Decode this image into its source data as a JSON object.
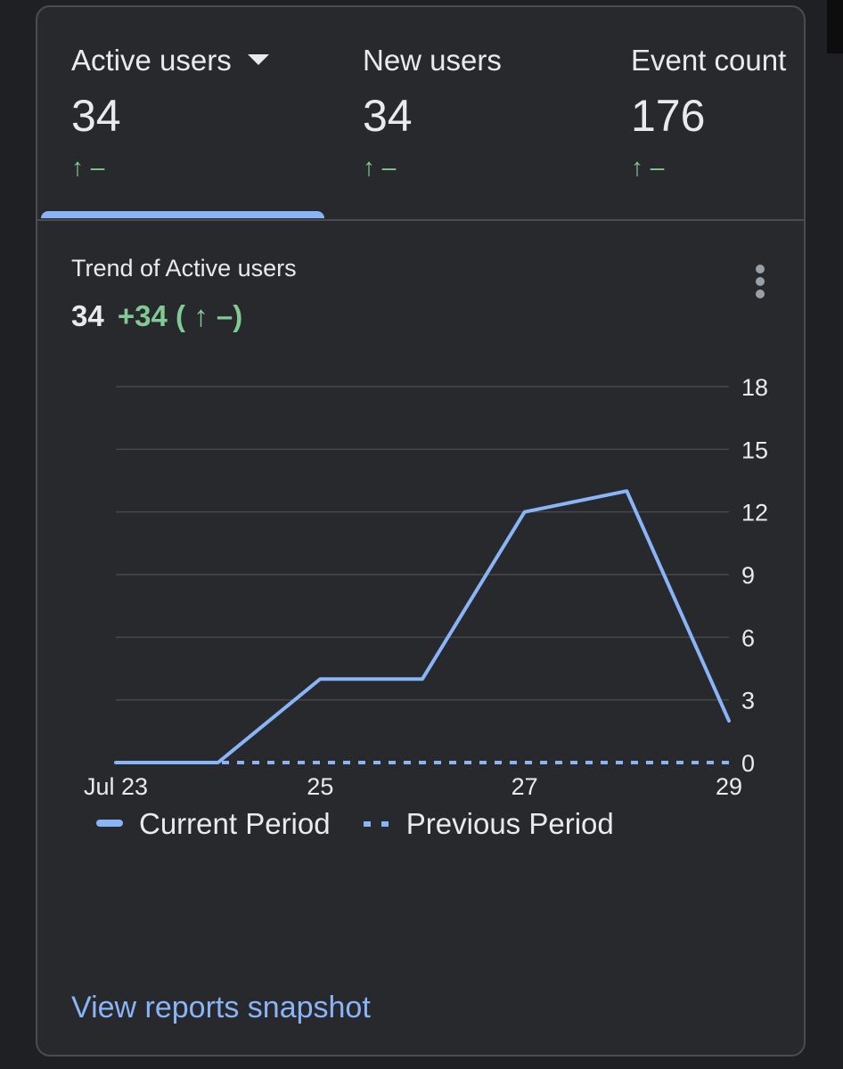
{
  "metrics": [
    {
      "label": "Active users",
      "value": "34",
      "change": "↑ –"
    },
    {
      "label": "New users",
      "value": "34",
      "change": "↑ –"
    },
    {
      "label": "Event count",
      "value": "176",
      "change": "↑ –"
    }
  ],
  "trend": {
    "title": "Trend of Active users",
    "value": "34",
    "delta": "+34 ( ↑ –)"
  },
  "chart_data": {
    "type": "line",
    "x": [
      "Jul 23",
      "Jul 24",
      "Jul 25",
      "Jul 26",
      "Jul 27",
      "Jul 28",
      "Jul 29"
    ],
    "x_tick_labels": [
      "Jul 23",
      "25",
      "27",
      "29"
    ],
    "x_tick_index": [
      0,
      2,
      4,
      6
    ],
    "series": [
      {
        "name": "Current Period",
        "values": [
          0,
          0,
          4,
          4,
          12,
          13,
          2
        ],
        "style": "solid"
      },
      {
        "name": "Previous Period",
        "values": [
          0,
          0,
          0,
          0,
          0,
          0,
          0
        ],
        "style": "dotted"
      }
    ],
    "y_ticks": [
      0,
      3,
      6,
      9,
      12,
      15,
      18
    ],
    "ylim": [
      0,
      18
    ],
    "y_axis_position": "right",
    "grid": true,
    "legend": "bottom-left",
    "color": "#8ab4f8"
  },
  "legend": {
    "current": "Current Period",
    "previous": "Previous Period"
  },
  "footer": {
    "link": "View reports snapshot"
  },
  "colors": {
    "background": "#1f2023",
    "card": "#28292d",
    "text": "#e8eaed",
    "positive": "#81c995",
    "accent": "#8ab4f8",
    "grid": "#46484c"
  }
}
